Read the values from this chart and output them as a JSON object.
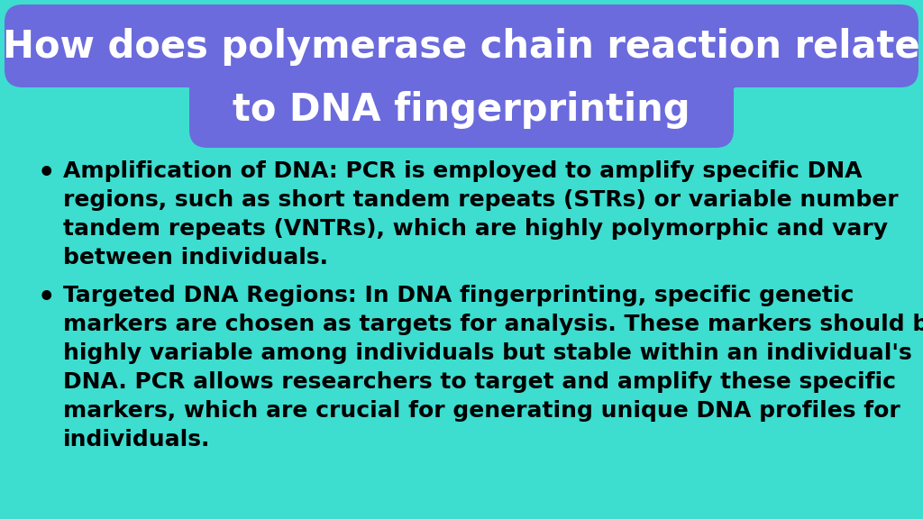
{
  "title_line1": "How does polymerase chain reaction relate",
  "title_line2": "to DNA fingerprinting",
  "background_color": "#3DDDD0",
  "title_box_color": "#6B6BDD",
  "title_text_color": "#FFFFFF",
  "bullet_text_color": "#000000",
  "bullet1_lines": [
    "Amplification of DNA: PCR is employed to amplify specific DNA",
    "regions, such as short tandem repeats (STRs) or variable number",
    "tandem repeats (VNTRs), which are highly polymorphic and vary",
    "between individuals."
  ],
  "bullet2_lines": [
    "Targeted DNA Regions: In DNA fingerprinting, specific genetic",
    "markers are chosen as targets for analysis. These markers should be",
    "highly variable among individuals but stable within an individual's",
    "DNA. PCR allows researchers to target and amplify these specific",
    "markers, which are crucial for generating unique DNA profiles for",
    "individuals."
  ],
  "figsize": [
    10.24,
    5.76
  ],
  "dpi": 100
}
